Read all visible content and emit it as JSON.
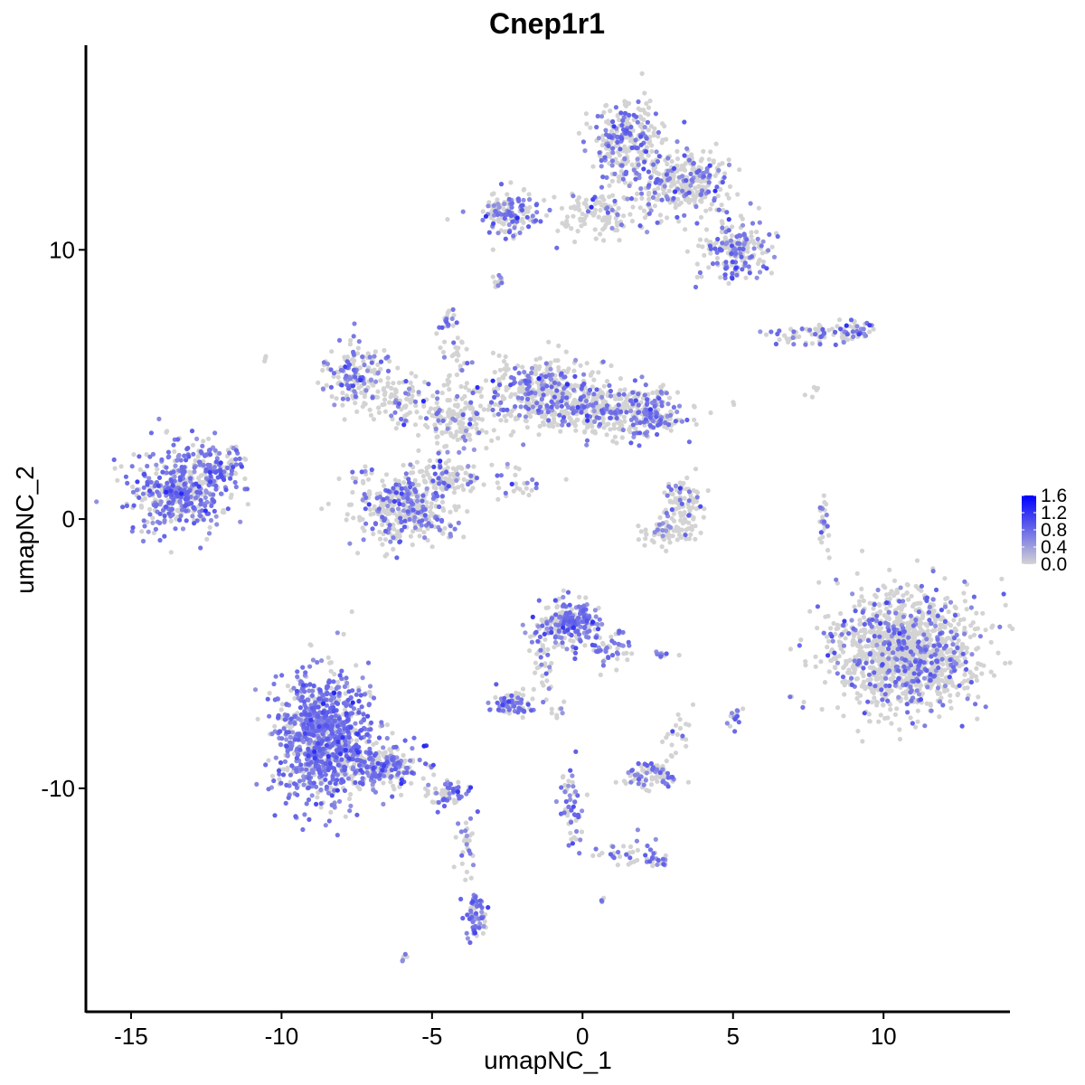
{
  "chart_data": {
    "type": "scatter",
    "title": "Cnep1r1",
    "xlabel": "umapNC_1",
    "ylabel": "umapNC_2",
    "xlim": [
      -16.5,
      14.2
    ],
    "ylim": [
      -18.3,
      17.6
    ],
    "xticks": [
      -15,
      -10,
      -5,
      0,
      5,
      10
    ],
    "xtick_labels": [
      "-15",
      "-10",
      "-5",
      "0",
      "5",
      "10"
    ],
    "yticks": [
      -10,
      0,
      10
    ],
    "ytick_labels": [
      "-10",
      "0",
      "10"
    ],
    "grid": false,
    "color_scale": {
      "low": "#d3d3d3",
      "high": "#0000ff",
      "min": 0.0,
      "max": 1.6,
      "ticks": [
        0.0,
        0.4,
        0.8,
        1.2,
        1.6
      ],
      "tick_labels": [
        "0.0",
        "0.4",
        "0.8",
        "1.2",
        "1.6"
      ]
    },
    "legend_position": "right",
    "clusters": [
      {
        "cx": -13.3,
        "cy": 1.1,
        "sx": 1.05,
        "sy": 1.0,
        "n": 460,
        "frac": 0.62
      },
      {
        "cx": -12.0,
        "cy": 1.9,
        "sx": 0.55,
        "sy": 0.6,
        "n": 70,
        "frac": 0.55
      },
      {
        "cx": -10.6,
        "cy": 6.0,
        "sx": 0.1,
        "sy": 0.1,
        "n": 3,
        "frac": 0.0
      },
      {
        "cx": -8.6,
        "cy": -8.0,
        "sx": 1.05,
        "sy": 1.55,
        "n": 980,
        "frac": 0.72
      },
      {
        "cx": -6.6,
        "cy": -9.2,
        "sx": 0.9,
        "sy": 0.55,
        "n": 230,
        "frac": 0.5
      },
      {
        "cx": -4.4,
        "cy": -10.2,
        "sx": 0.45,
        "sy": 0.3,
        "n": 60,
        "frac": 0.45
      },
      {
        "cx": -3.8,
        "cy": -12.3,
        "sx": 0.25,
        "sy": 0.8,
        "n": 30,
        "frac": 0.3
      },
      {
        "cx": -3.55,
        "cy": -14.8,
        "sx": 0.22,
        "sy": 0.55,
        "n": 60,
        "frac": 0.7
      },
      {
        "cx": -5.9,
        "cy": -16.3,
        "sx": 0.1,
        "sy": 0.1,
        "n": 6,
        "frac": 0.6
      },
      {
        "cx": -0.4,
        "cy": -3.8,
        "sx": 0.6,
        "sy": 0.6,
        "n": 230,
        "frac": 0.55
      },
      {
        "cx": -1.3,
        "cy": -5.2,
        "sx": 0.25,
        "sy": 0.8,
        "n": 40,
        "frac": 0.4
      },
      {
        "cx": -2.3,
        "cy": -6.9,
        "sx": 0.5,
        "sy": 0.3,
        "n": 80,
        "frac": 0.6
      },
      {
        "cx": 0.9,
        "cy": -4.8,
        "sx": 0.45,
        "sy": 0.6,
        "n": 50,
        "frac": 0.45
      },
      {
        "cx": 2.7,
        "cy": -5.0,
        "sx": 0.3,
        "sy": 0.1,
        "n": 10,
        "frac": 0.5
      },
      {
        "cx": -0.8,
        "cy": -7.1,
        "sx": 0.2,
        "sy": 0.2,
        "n": 8,
        "frac": 0.3
      },
      {
        "cx": 2.3,
        "cy": -9.5,
        "sx": 0.6,
        "sy": 0.3,
        "n": 90,
        "frac": 0.45
      },
      {
        "cx": 3.2,
        "cy": -7.9,
        "sx": 0.25,
        "sy": 0.6,
        "n": 20,
        "frac": 0.2
      },
      {
        "cx": 5.1,
        "cy": -7.3,
        "sx": 0.15,
        "sy": 0.25,
        "n": 15,
        "frac": 0.6
      },
      {
        "cx": -0.4,
        "cy": -10.7,
        "sx": 0.25,
        "sy": 1.1,
        "n": 50,
        "frac": 0.5
      },
      {
        "cx": 1.5,
        "cy": -12.4,
        "sx": 0.8,
        "sy": 0.35,
        "n": 40,
        "frac": 0.4
      },
      {
        "cx": 2.5,
        "cy": -12.7,
        "sx": 0.2,
        "sy": 0.15,
        "n": 15,
        "frac": 0.7
      },
      {
        "cx": 0.6,
        "cy": -14.1,
        "sx": 0.08,
        "sy": 0.08,
        "n": 4,
        "frac": 0.6
      },
      {
        "cx": -7.5,
        "cy": 5.3,
        "sx": 0.75,
        "sy": 0.85,
        "n": 160,
        "frac": 0.5
      },
      {
        "cx": -6.0,
        "cy": 4.4,
        "sx": 0.7,
        "sy": 0.6,
        "n": 80,
        "frac": 0.3
      },
      {
        "cx": -4.2,
        "cy": 3.7,
        "sx": 0.9,
        "sy": 0.6,
        "n": 150,
        "frac": 0.2
      },
      {
        "cx": -5.9,
        "cy": 0.4,
        "sx": 1.2,
        "sy": 0.95,
        "n": 380,
        "frac": 0.38
      },
      {
        "cx": -4.5,
        "cy": 1.6,
        "sx": 0.6,
        "sy": 0.5,
        "n": 80,
        "frac": 0.25
      },
      {
        "cx": -2.1,
        "cy": 1.2,
        "sx": 0.7,
        "sy": 0.5,
        "n": 30,
        "frac": 0.3
      },
      {
        "cx": -4.3,
        "cy": 6.0,
        "sx": 0.35,
        "sy": 1.0,
        "n": 40,
        "frac": 0.2
      },
      {
        "cx": -1.3,
        "cy": 4.7,
        "sx": 1.2,
        "sy": 0.85,
        "n": 380,
        "frac": 0.3
      },
      {
        "cx": 1.2,
        "cy": 4.0,
        "sx": 1.6,
        "sy": 0.65,
        "n": 380,
        "frac": 0.3
      },
      {
        "cx": 2.3,
        "cy": 4.0,
        "sx": 0.6,
        "sy": 0.5,
        "n": 60,
        "frac": 0.5
      },
      {
        "cx": -4.4,
        "cy": 7.4,
        "sx": 0.15,
        "sy": 0.2,
        "n": 12,
        "frac": 0.7
      },
      {
        "cx": 3.3,
        "cy": 0.6,
        "sx": 0.5,
        "sy": 0.6,
        "n": 90,
        "frac": 0.15
      },
      {
        "cx": 2.8,
        "cy": -0.5,
        "sx": 0.6,
        "sy": 0.35,
        "n": 60,
        "frac": 0.1
      },
      {
        "cx": 8.0,
        "cy": -0.1,
        "sx": 0.15,
        "sy": 0.6,
        "n": 25,
        "frac": 0.3
      },
      {
        "cx": 10.7,
        "cy": -4.9,
        "sx": 1.55,
        "sy": 1.45,
        "n": 1300,
        "frac": 0.24
      },
      {
        "cx": 1.5,
        "cy": 14.1,
        "sx": 0.8,
        "sy": 1.0,
        "n": 280,
        "frac": 0.3
      },
      {
        "cx": 3.3,
        "cy": 12.5,
        "sx": 1.1,
        "sy": 0.8,
        "n": 300,
        "frac": 0.32
      },
      {
        "cx": 5.0,
        "cy": 10.0,
        "sx": 0.8,
        "sy": 0.8,
        "n": 200,
        "frac": 0.35
      },
      {
        "cx": 0.7,
        "cy": 11.3,
        "sx": 1.0,
        "sy": 0.55,
        "n": 120,
        "frac": 0.2
      },
      {
        "cx": -2.4,
        "cy": 11.4,
        "sx": 0.7,
        "sy": 0.5,
        "n": 140,
        "frac": 0.45
      },
      {
        "cx": -2.8,
        "cy": 8.8,
        "sx": 0.15,
        "sy": 0.2,
        "n": 12,
        "frac": 0.6
      },
      {
        "cx": 7.7,
        "cy": 6.9,
        "sx": 0.9,
        "sy": 0.25,
        "n": 60,
        "frac": 0.4
      },
      {
        "cx": 9.0,
        "cy": 7.0,
        "sx": 0.4,
        "sy": 0.25,
        "n": 40,
        "frac": 0.5
      },
      {
        "cx": 7.7,
        "cy": 4.7,
        "sx": 0.15,
        "sy": 0.2,
        "n": 5,
        "frac": 0.0
      }
    ]
  }
}
